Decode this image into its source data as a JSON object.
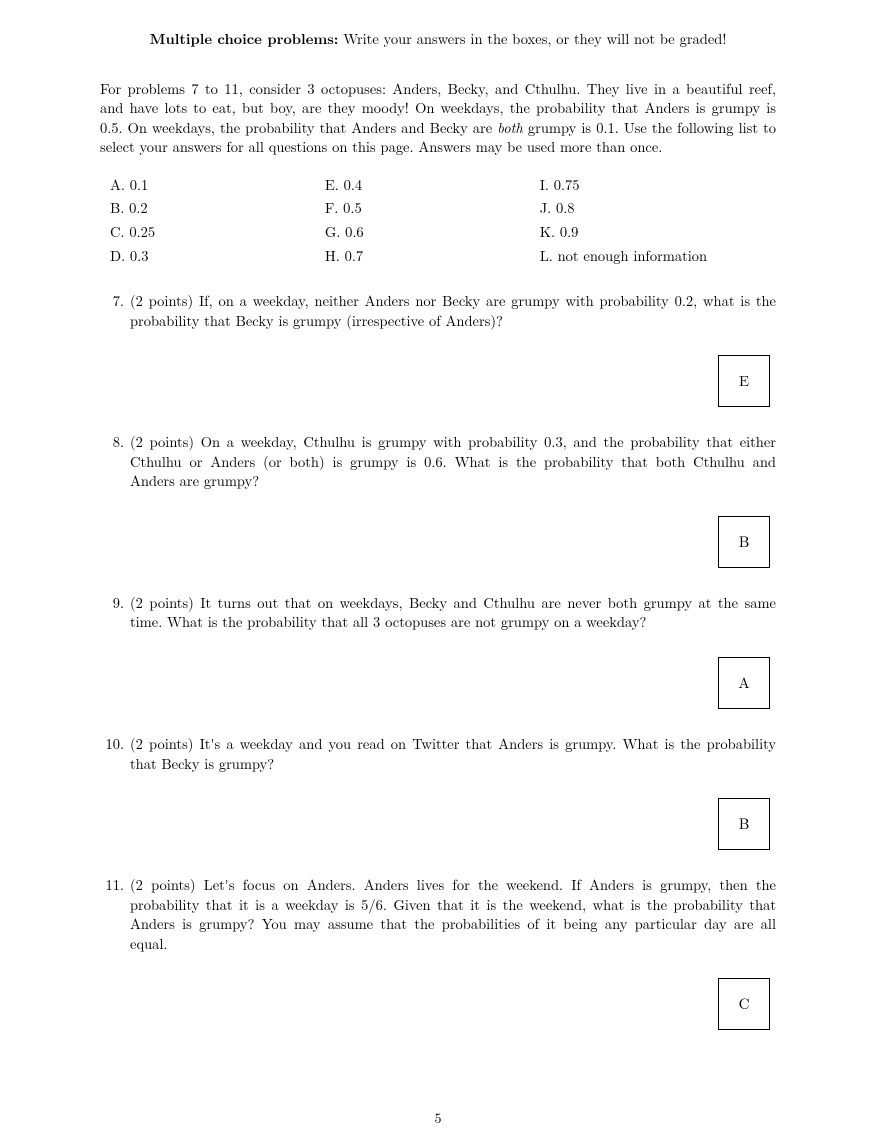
{
  "header": {
    "bold": "Multiple choice problems:",
    "rest": " Write your answers in the boxes, or they will not be graded!"
  },
  "intro_before_italic": "For problems 7 to 11, consider 3 octopuses: Anders, Becky, and Cthulhu. They live in a beautiful reef, and have lots to eat, but boy, are they moody! On weekdays, the probability that Anders is grumpy is 0.5. On weekdays, the probability that Anders and Becky are ",
  "intro_italic": "both",
  "intro_after_italic": " grumpy is 0.1. Use the following list to select your answers for all questions on this page. Answers may be used more than once.",
  "choices": {
    "col1": [
      "A. 0.1",
      "B. 0.2",
      "C. 0.25",
      "D. 0.3"
    ],
    "col2": [
      "E. 0.4",
      "F. 0.5",
      "G. 0.6",
      "H. 0.7"
    ],
    "col3": [
      "I. 0.75",
      "J. 0.8",
      "K. 0.9",
      "L. not enough information"
    ]
  },
  "problems": [
    {
      "num": "7.",
      "points": "(2 points)",
      "text": " If, on a weekday, neither Anders nor Becky are grumpy with probability 0.2, what is the probability that Becky is grumpy (irrespective of Anders)?",
      "answer": "E"
    },
    {
      "num": "8.",
      "points": "(2 points)",
      "text": " On a weekday, Cthulhu is grumpy with probability 0.3, and the probability that either Cthulhu or Anders (or both) is grumpy is 0.6. What is the probability that both Cthulhu and Anders are grumpy?",
      "answer": "B"
    },
    {
      "num": "9.",
      "points": "(2 points)",
      "text": " It turns out that on weekdays, Becky and Cthulhu are never both grumpy at the same time. What is the probability that all 3 octopuses are not grumpy on a weekday?",
      "answer": "A"
    },
    {
      "num": "10.",
      "points": "(2 points)",
      "text": " It's a weekday and you read on Twitter that Anders is grumpy. What is the probability that Becky is grumpy?",
      "answer": "B"
    },
    {
      "num": "11.",
      "points": "(2 points)",
      "text": " Let's focus on Anders. Anders lives for the weekend. If Anders is grumpy, then the probability that it is a weekday is 5/6. Given that it is the weekend, what is the probability that Anders is grumpy? You may assume that the probabilities of it being any particular day are all equal.",
      "answer": "C"
    }
  ],
  "page_number": "5"
}
